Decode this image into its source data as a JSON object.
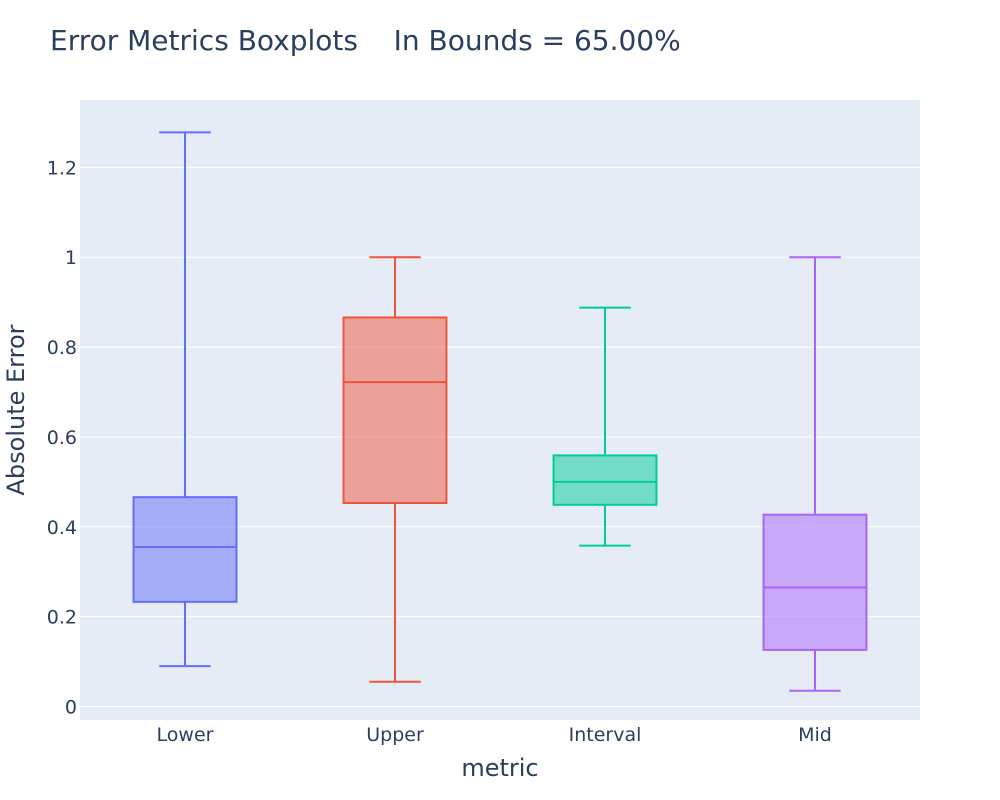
{
  "chart_data": {
    "type": "box",
    "title": "Error Metrics Boxplots    In Bounds = 65.00%",
    "xlabel": "metric",
    "ylabel": "Absolute Error",
    "ylim": [
      -0.03,
      1.35
    ],
    "yticks": [
      0,
      0.2,
      0.4,
      0.6,
      0.8,
      1,
      1.2
    ],
    "ytick_labels": [
      "0",
      "0.2",
      "0.4",
      "0.6",
      "0.8",
      "1",
      "1.2"
    ],
    "grid": true,
    "legend": "none",
    "categories": [
      "Lower",
      "Upper",
      "Interval",
      "Mid"
    ],
    "boxes": [
      {
        "category": "Lower",
        "min": 0.09,
        "q1": 0.233,
        "median": 0.355,
        "q3": 0.466,
        "max": 1.278,
        "color": "#636efa"
      },
      {
        "category": "Upper",
        "min": 0.055,
        "q1": 0.453,
        "median": 0.722,
        "q3": 0.866,
        "max": 1.0,
        "color": "#ef553b"
      },
      {
        "category": "Interval",
        "min": 0.358,
        "q1": 0.449,
        "median": 0.5,
        "q3": 0.559,
        "max": 0.888,
        "color": "#00cc96"
      },
      {
        "category": "Mid",
        "min": 0.035,
        "q1": 0.126,
        "median": 0.265,
        "q3": 0.427,
        "max": 1.0,
        "color": "#ab63fa"
      }
    ]
  }
}
